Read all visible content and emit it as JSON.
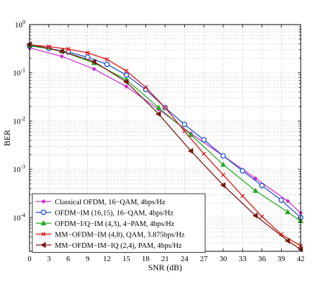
{
  "chart_data": {
    "type": "line",
    "title": "",
    "xlabel": "SNR (dB)",
    "ylabel": "BER",
    "xlim": [
      0,
      42
    ],
    "ylim": [
      2e-05,
      1
    ],
    "yscale": "log",
    "grid": true,
    "legend_position": "bottom-left",
    "x_ticks": [
      0,
      3,
      6,
      9,
      12,
      15,
      18,
      21,
      24,
      27,
      30,
      33,
      36,
      39,
      42
    ],
    "y_ticks": [
      {
        "value": 0.0001,
        "base": "10",
        "exp": "-4"
      },
      {
        "value": 0.001,
        "base": "10",
        "exp": "-3"
      },
      {
        "value": 0.01,
        "base": "10",
        "exp": "-2"
      },
      {
        "value": 0.1,
        "base": "10",
        "exp": "-1"
      },
      {
        "value": 1,
        "base": "10",
        "exp": "0"
      }
    ],
    "series": [
      {
        "name": "Classical OFDM, 16−QAM, 4bps/Hz",
        "color": "#cc33cc",
        "marker": "diamond",
        "x": [
          0,
          5,
          10,
          15,
          20,
          25,
          30,
          35,
          40,
          42
        ],
        "y": [
          0.33,
          0.22,
          0.12,
          0.052,
          0.0175,
          0.0055,
          0.0019,
          0.00065,
          0.00022,
          0.000125
        ]
      },
      {
        "name": "OFDM−IM (16,15), 16−QAM, 4bps/Hz",
        "color": "#1f4fd8",
        "marker": "circle",
        "x": [
          0,
          3,
          6,
          9,
          12,
          15,
          18,
          21,
          24,
          27,
          30,
          33,
          36,
          39,
          42
        ],
        "y": [
          0.36,
          0.32,
          0.27,
          0.21,
          0.15,
          0.09,
          0.045,
          0.019,
          0.0085,
          0.0041,
          0.0019,
          0.00093,
          0.00046,
          0.00023,
          0.0001
        ]
      },
      {
        "name": "OFDM−I/Q−IM (4,3), 4−PAM, 4bps/Hz",
        "color": "#22aa22",
        "marker": "triangle",
        "x": [
          0,
          5,
          10,
          15,
          20,
          25,
          30,
          35,
          40,
          42
        ],
        "y": [
          0.37,
          0.28,
          0.16,
          0.072,
          0.019,
          0.0052,
          0.00125,
          0.00036,
          0.00013,
          8.5e-05
        ]
      },
      {
        "name": "MM−OFDM−IM (4,8), QAM, 3.875bps/Hz",
        "color": "#dd1111",
        "marker": "x",
        "x": [
          0,
          3,
          6,
          9,
          12,
          15,
          18,
          21,
          24,
          27,
          30,
          33,
          36,
          39,
          42
        ],
        "y": [
          0.38,
          0.35,
          0.31,
          0.26,
          0.19,
          0.11,
          0.05,
          0.019,
          0.0062,
          0.0021,
          0.00077,
          0.00028,
          0.000105,
          4.5e-05,
          2.6e-05
        ]
      },
      {
        "name": "MM−OFDM−IM−IQ (2,4), PAM, 4bps/Hz",
        "color": "#7a1a10",
        "marker": "left-triangle",
        "x": [
          0,
          5,
          10,
          15,
          20,
          25,
          30,
          35,
          40,
          42
        ],
        "y": [
          0.39,
          0.28,
          0.17,
          0.065,
          0.014,
          0.0024,
          0.00047,
          0.00011,
          3.3e-05,
          2.2e-05
        ]
      }
    ]
  }
}
